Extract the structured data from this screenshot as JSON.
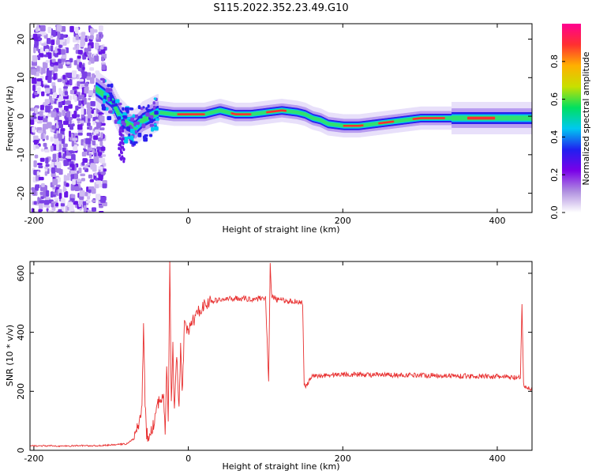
{
  "title": "S115.2022.352.23.49.G10",
  "chart_data": [
    {
      "type": "heatmap",
      "xlabel": "Height of straight line (km)",
      "ylabel": "Frequency (Hz)",
      "xlim": [
        -205,
        445
      ],
      "ylim": [
        -25,
        24
      ],
      "xticks": [
        -200,
        0,
        200,
        400
      ],
      "yticks": [
        20,
        10,
        0,
        -10,
        -20
      ],
      "grid": false,
      "colorbar": {
        "label": "Normalized spectral amplitude",
        "range": [
          0.0,
          1.0
        ],
        "ticks": [
          0.0,
          0.2,
          0.4,
          0.6,
          0.8
        ],
        "colors": [
          "#ffffff",
          "#b090e0",
          "#7a00e8",
          "#2020f0",
          "#00c8f0",
          "#00e060",
          "#c8e000",
          "#ffb000",
          "#ff3030",
          "#ff0090"
        ]
      },
      "ridge": {
        "x": [
          -120,
          -100,
          -90,
          -80,
          -70,
          -60,
          -50,
          -40,
          -20,
          0,
          20,
          40,
          60,
          80,
          100,
          120,
          140,
          150,
          160,
          170,
          180,
          200,
          220,
          240,
          260,
          280,
          300,
          320,
          340,
          360,
          380,
          400,
          420,
          445
        ],
        "y": [
          7,
          4,
          0,
          -2,
          -3,
          -1,
          0,
          1,
          0.5,
          0.5,
          0.5,
          1.5,
          0.5,
          0.5,
          1,
          1.5,
          1,
          0.5,
          -0.5,
          -1,
          -2,
          -2.5,
          -2.5,
          -2,
          -1.5,
          -1,
          -0.5,
          -0.5,
          -0.5,
          -0.5,
          -0.5,
          -0.5,
          -0.5,
          -0.5
        ]
      }
    },
    {
      "type": "line",
      "xlabel": "Height of straight line (km)",
      "ylabel": "SNR (10 * v/v)",
      "xlim": [
        -205,
        445
      ],
      "ylim": [
        0,
        640
      ],
      "xticks": [
        -200,
        0,
        200,
        400
      ],
      "yticks": [
        0,
        200,
        400,
        600
      ],
      "grid": false,
      "color": "#e83030",
      "x": [
        -205,
        -180,
        -160,
        -140,
        -120,
        -100,
        -80,
        -70,
        -65,
        -60,
        -58,
        -56,
        -54,
        -52,
        -50,
        -48,
        -45,
        -40,
        -35,
        -32,
        -30,
        -28,
        -26,
        -24,
        -22,
        -20,
        -18,
        -15,
        -12,
        -10,
        -8,
        -5,
        0,
        5,
        10,
        15,
        20,
        25,
        30,
        40,
        50,
        60,
        70,
        80,
        90,
        100,
        104,
        106,
        108,
        110,
        115,
        120,
        130,
        140,
        148,
        150,
        152,
        160,
        180,
        200,
        250,
        300,
        350,
        400,
        430,
        432,
        434,
        436,
        440,
        445
      ],
      "y": [
        15,
        15,
        14,
        16,
        15,
        18,
        22,
        40,
        80,
        150,
        430,
        150,
        60,
        40,
        50,
        60,
        90,
        150,
        180,
        200,
        60,
        300,
        80,
        635,
        150,
        350,
        120,
        330,
        140,
        350,
        180,
        420,
        400,
        440,
        450,
        480,
        490,
        500,
        505,
        510,
        512,
        515,
        515,
        512,
        515,
        518,
        235,
        630,
        515,
        520,
        510,
        510,
        505,
        505,
        500,
        220,
        215,
        250,
        255,
        258,
        255,
        255,
        252,
        250,
        245,
        490,
        225,
        215,
        210,
        205
      ]
    }
  ]
}
